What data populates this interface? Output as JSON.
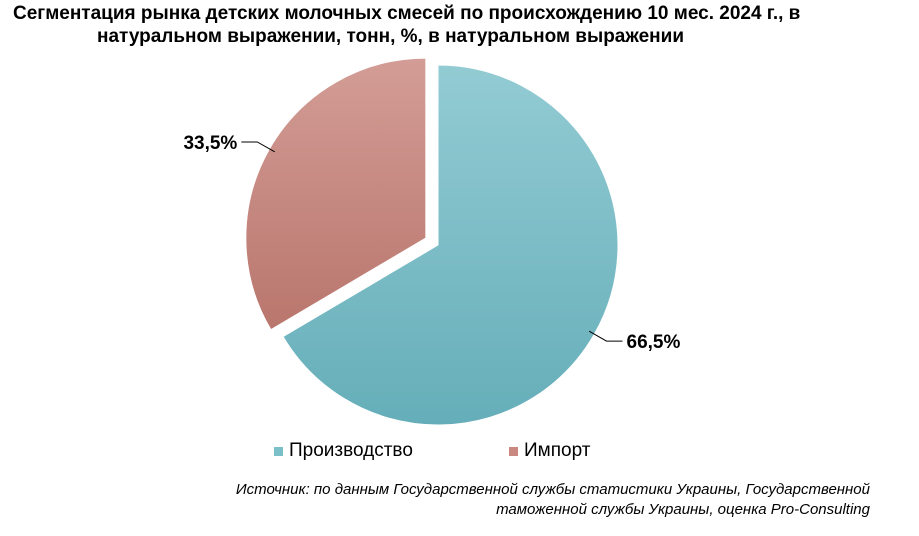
{
  "chart_data": {
    "type": "pie",
    "title_lines": [
      "Сегментация рынка детских молочных смесей по происхождению 10 мес. 2024 г., в",
      "натуральном выражении, тонн, %, в натуральном выражении"
    ],
    "categories": [
      "Производство",
      "Импорт"
    ],
    "values": [
      66.5,
      33.5
    ],
    "data_labels": [
      "66,5%",
      "33,5%"
    ],
    "colors": [
      "#7bbfc9",
      "#c98981"
    ],
    "exploded": [
      false,
      true
    ],
    "legend_position": "bottom"
  },
  "source_lines": [
    "Источник: по данным Государственной службы статистики Украины, Государственной",
    "таможенной службы Украины, оценка Pro-Consulting"
  ]
}
